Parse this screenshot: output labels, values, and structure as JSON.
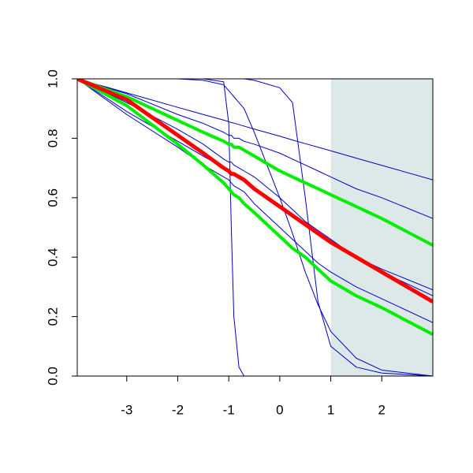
{
  "chart_data": {
    "type": "line",
    "x": [
      -3.97,
      -3,
      -2,
      -1.5,
      -1.1,
      -1,
      -0.95,
      -0.9,
      -0.8,
      -0.7,
      -0.5,
      0,
      0.25,
      0.5,
      0.75,
      1,
      1.5,
      2,
      3
    ],
    "xlim": [
      -3.97,
      3
    ],
    "xticks": [
      -3,
      -2,
      -1,
      0,
      1,
      2
    ],
    "ylim": [
      0,
      1
    ],
    "yticks": [
      {
        "value": 0,
        "label": "0.0"
      },
      0.2,
      0.4,
      0.6,
      0.8,
      {
        "value": 1,
        "label": "1.0"
      }
    ],
    "shaded_region": {
      "x": [
        1,
        3
      ],
      "color": "#dde9e9"
    },
    "series": [
      {
        "color": "#0000cc",
        "line_width": 1,
        "values": [
          1,
          0.953,
          0.904,
          0.88,
          0.861,
          0.856,
          0.853,
          0.851,
          0.846,
          0.841,
          0.831,
          0.807,
          0.794,
          0.782,
          0.77,
          0.758,
          0.733,
          0.709,
          0.66
        ]
      },
      {
        "color": "#0000cc",
        "line_width": 1,
        "values": [
          1,
          0.95,
          0.88,
          0.85,
          0.82,
          0.81,
          0.81,
          0.8,
          0.8,
          0.79,
          0.78,
          0.75,
          0.73,
          0.71,
          0.69,
          0.67,
          0.63,
          0.6,
          0.53
        ]
      },
      {
        "color": "#0000cc",
        "line_width": 1,
        "values": [
          1,
          0.92,
          0.83,
          0.78,
          0.73,
          0.72,
          0.72,
          0.71,
          0.7,
          0.69,
          0.67,
          0.6,
          0.56,
          0.52,
          0.49,
          0.46,
          0.4,
          0.36,
          0.29
        ]
      },
      {
        "color": "#0000cc",
        "line_width": 1,
        "values": [
          1,
          0.89,
          0.79,
          0.74,
          0.7,
          0.69,
          0.68,
          0.68,
          0.67,
          0.66,
          0.63,
          0.57,
          0.54,
          0.51,
          0.48,
          0.45,
          0.4,
          0.35,
          0.27
        ]
      },
      {
        "color": "#0000cc",
        "line_width": 1,
        "values": [
          1,
          0.88,
          0.77,
          0.71,
          0.67,
          0.66,
          0.65,
          0.64,
          0.63,
          0.62,
          0.58,
          0.5,
          0.46,
          0.42,
          0.38,
          0.35,
          0.3,
          0.26,
          0.18
        ]
      },
      {
        "color": "#0000cc",
        "line_width": 1,
        "values": [
          1,
          1,
          1,
          1,
          0.99,
          0.85,
          0.5,
          0.2,
          0.03,
          0,
          0,
          0,
          0,
          0,
          0,
          0,
          0,
          0,
          0
        ]
      },
      {
        "color": "#0000cc",
        "line_width": 1,
        "values": [
          1,
          1,
          1,
          0.995,
          0.98,
          0.96,
          0.95,
          0.94,
          0.92,
          0.9,
          0.82,
          0.6,
          0.48,
          0.35,
          0.24,
          0.15,
          0.06,
          0.02,
          0
        ]
      },
      {
        "color": "#0000cc",
        "line_width": 1,
        "values": [
          1,
          1,
          1,
          1,
          1,
          1,
          1,
          1,
          1,
          1,
          0.995,
          0.97,
          0.92,
          0.6,
          0.25,
          0.1,
          0.03,
          0.01,
          0
        ]
      },
      {
        "color": "#00ee00",
        "line_width": 4,
        "values": [
          1,
          0.94,
          0.86,
          0.82,
          0.79,
          0.78,
          0.78,
          0.77,
          0.77,
          0.76,
          0.74,
          0.69,
          0.67,
          0.65,
          0.63,
          0.61,
          0.57,
          0.53,
          0.44
        ]
      },
      {
        "color": "#00ee00",
        "line_width": 4,
        "values": [
          1,
          0.91,
          0.78,
          0.71,
          0.65,
          0.63,
          0.62,
          0.61,
          0.6,
          0.58,
          0.55,
          0.47,
          0.43,
          0.4,
          0.36,
          0.32,
          0.27,
          0.23,
          0.14
        ]
      },
      {
        "color": "#ff0000",
        "line_width": 5,
        "values": [
          1,
          0.93,
          0.81,
          0.75,
          0.7,
          0.69,
          0.68,
          0.68,
          0.67,
          0.66,
          0.63,
          0.57,
          0.54,
          0.51,
          0.48,
          0.45,
          0.4,
          0.35,
          0.25
        ]
      }
    ]
  }
}
